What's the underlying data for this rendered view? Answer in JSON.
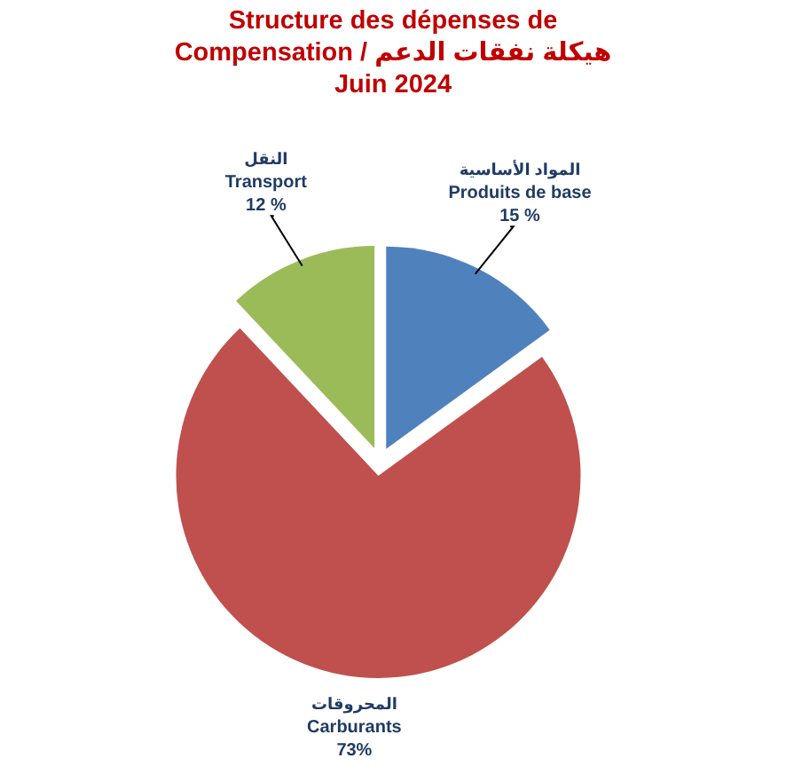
{
  "chart_data": {
    "type": "pie",
    "title": "Structure des dépenses de Compensation / هيكلة نفقات الدعم",
    "subtitle": "Juin 2024",
    "categories": [
      "المواد الأساسية\nProduits de base",
      "المحروقات\nCarburants",
      "النقل\nTransport"
    ],
    "values": [
      15,
      73,
      12
    ],
    "colors": [
      "#4f81bd",
      "#c0504d",
      "#9bbb59"
    ],
    "value_labels": [
      "15 %",
      "73%",
      "12 %"
    ]
  }
}
